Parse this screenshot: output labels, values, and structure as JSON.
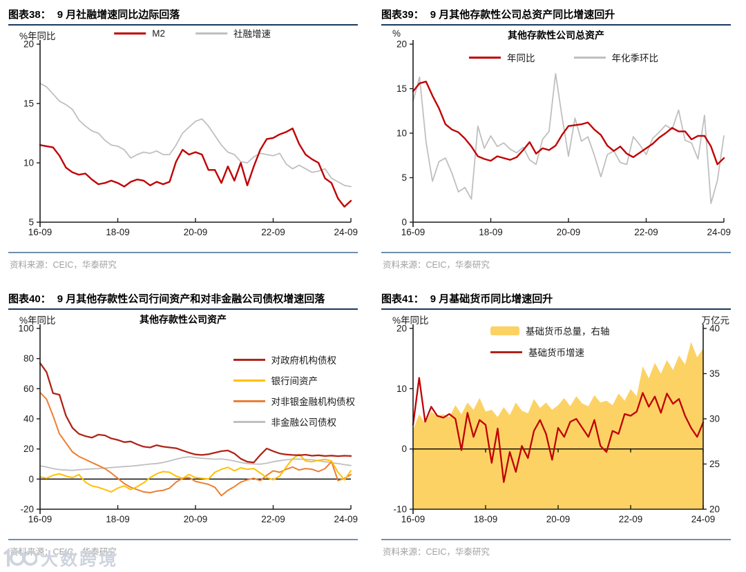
{
  "watermark": {
    "text": "大数跨境"
  },
  "panels": [
    {
      "caption_label": "图表38：",
      "caption_text": "9 月社融增速同比边际回落",
      "source": "资料来源：CEIC，华泰研究"
    },
    {
      "caption_label": "图表39：",
      "caption_text": "9 月其他存款性公司总资产同比增速回升",
      "source": "资料来源：CEIC，华泰研究"
    },
    {
      "caption_label": "图表40：",
      "caption_text": "9 月其他存款性公司行间资产和对非金融公司债权增速回落",
      "source": "资料来源：CEIC，华泰研究"
    },
    {
      "caption_label": "图表41：",
      "caption_text": "9 月基础货币同比增速回升",
      "source": "资料来源：CEIC，华泰研究"
    }
  ],
  "chart_data": [
    {
      "id": "fig38",
      "type": "line",
      "title": "图表38： 9 月社融增速同比边际回落",
      "ylabel": "%年同比",
      "ylim": [
        5,
        20
      ],
      "yticks": [
        5,
        10,
        15,
        20
      ],
      "x_tick_labels": [
        "16-09",
        "18-09",
        "20-09",
        "22-09",
        "24-09"
      ],
      "grid": false,
      "legend_position": "top-center",
      "legend": [
        {
          "label": "M2",
          "color": "#c00000",
          "swatch": "line"
        },
        {
          "label": "社融增速",
          "color": "#bfbfbf",
          "swatch": "line"
        }
      ],
      "series": [
        {
          "name": "社融增速",
          "color": "#bfbfbf",
          "width": 1.8,
          "values": [
            16.7,
            16.4,
            15.8,
            15.2,
            14.9,
            14.5,
            13.6,
            13.1,
            12.7,
            12.5,
            11.9,
            11.5,
            11.4,
            11.1,
            10.4,
            10.7,
            10.9,
            10.8,
            11.0,
            10.7,
            10.7,
            11.5,
            12.5,
            13.0,
            13.5,
            13.7,
            13.1,
            12.3,
            11.5,
            10.9,
            10.7,
            10.1,
            10.0,
            10.5,
            10.8,
            10.7,
            10.6,
            10.8,
            9.9,
            9.5,
            9.8,
            9.5,
            9.2,
            9.3,
            9.5,
            8.7,
            8.4,
            8.1,
            8.0
          ]
        },
        {
          "name": "M2",
          "color": "#c00000",
          "width": 2.4,
          "values": [
            11.5,
            11.4,
            11.3,
            10.6,
            9.6,
            9.2,
            9.0,
            9.1,
            8.6,
            8.2,
            8.3,
            8.5,
            8.3,
            8.0,
            8.4,
            8.6,
            8.5,
            8.1,
            8.4,
            8.2,
            8.4,
            10.1,
            11.1,
            10.7,
            10.9,
            10.7,
            9.4,
            9.4,
            8.3,
            9.7,
            8.5,
            10.0,
            8.1,
            9.7,
            11.1,
            12.0,
            12.1,
            12.4,
            12.6,
            12.9,
            11.6,
            10.7,
            10.3,
            10.0,
            8.7,
            8.3,
            7.0,
            6.3,
            6.8
          ]
        }
      ]
    },
    {
      "id": "fig39",
      "type": "line",
      "title": "图表39： 9 月其他存款性公司总资产同比增速回升",
      "subtitle": "其他存款性公司总资产",
      "ylabel": "%",
      "ylim": [
        0,
        20
      ],
      "yticks": [
        0,
        5,
        10,
        15,
        20
      ],
      "x_tick_labels": [
        "16-09",
        "18-09",
        "20-09",
        "22-09",
        "24-09"
      ],
      "grid": false,
      "legend_position": "top-center",
      "legend": [
        {
          "label": "年同比",
          "color": "#c00000",
          "swatch": "line"
        },
        {
          "label": "年化季环比",
          "color": "#bfbfbf",
          "swatch": "line"
        }
      ],
      "series": [
        {
          "name": "年化季环比",
          "color": "#bfbfbf",
          "width": 1.8,
          "values": [
            13.6,
            16.3,
            9.0,
            4.6,
            6.8,
            7.2,
            5.5,
            3.4,
            3.9,
            2.6,
            10.8,
            8.3,
            9.7,
            8.5,
            8.9,
            8.2,
            7.8,
            8.4,
            7.0,
            6.5,
            9.3,
            10.2,
            16.7,
            11.9,
            7.4,
            11.7,
            9.1,
            9.6,
            7.5,
            5.1,
            7.6,
            8.0,
            6.7,
            6.5,
            9.6,
            8.7,
            7.6,
            9.4,
            10.1,
            10.9,
            10.4,
            12.6,
            9.2,
            8.9,
            7.1,
            12.0,
            2.1,
            4.7,
            9.7
          ]
        },
        {
          "name": "年同比",
          "color": "#c00000",
          "width": 2.4,
          "values": [
            14.7,
            15.6,
            15.8,
            14.2,
            12.8,
            11.0,
            10.4,
            10.1,
            9.4,
            8.5,
            7.4,
            7.1,
            6.9,
            7.4,
            7.2,
            7.0,
            7.3,
            8.1,
            9.0,
            7.7,
            8.3,
            8.1,
            8.6,
            9.8,
            10.8,
            10.9,
            11.0,
            11.2,
            10.4,
            9.8,
            8.6,
            8.0,
            8.5,
            7.7,
            7.3,
            7.8,
            8.3,
            8.8,
            9.5,
            10.0,
            10.6,
            10.2,
            10.2,
            9.3,
            9.7,
            9.7,
            8.5,
            6.5,
            7.2
          ]
        }
      ]
    },
    {
      "id": "fig40",
      "type": "line",
      "title": "图表40： 9 月其他存款性公司行间资产和对非金融公司债权增速回落",
      "subtitle": "其他存款性公司资产",
      "ylabel": "%年同比",
      "ylim": [
        -20,
        100
      ],
      "yticks": [
        -20,
        0,
        20,
        40,
        60,
        80,
        100
      ],
      "zero_line": true,
      "x_tick_labels": [
        "16-09",
        "18-09",
        "20-09",
        "22-09",
        "24-09"
      ],
      "grid": false,
      "legend_position": "right",
      "legend": [
        {
          "label": "对政府机构债权",
          "color": "#b02418",
          "swatch": "line"
        },
        {
          "label": "银行间资产",
          "color": "#ffc000",
          "swatch": "line"
        },
        {
          "label": "对非银金融机构债权",
          "color": "#ed7d31",
          "swatch": "line"
        },
        {
          "label": "非金融公司债权",
          "color": "#bfbfbf",
          "swatch": "line"
        }
      ],
      "series": [
        {
          "name": "非金融公司债权",
          "color": "#bfbfbf",
          "width": 1.8,
          "values": [
            8.8,
            8.0,
            7.0,
            6.3,
            6.0,
            5.8,
            6.2,
            6.5,
            6.8,
            7.0,
            7.3,
            7.6,
            8.0,
            8.3,
            8.6,
            9.0,
            9.5,
            10.0,
            10.3,
            11.0,
            12.0,
            13.2,
            14.2,
            14.8,
            14.3,
            13.8,
            13.5,
            13.2,
            13.4,
            12.8,
            12.0,
            11.0,
            10.3,
            10.0,
            9.9,
            10.5,
            11.5,
            12.2,
            12.8,
            13.2,
            13.3,
            13.0,
            12.8,
            12.2,
            11.5,
            10.8,
            10.3,
            9.6,
            9.0
          ]
        },
        {
          "name": "对非银金融机构债权",
          "color": "#ed7d31",
          "width": 2.0,
          "values": [
            57.5,
            53.0,
            42.0,
            30.0,
            24.0,
            18.0,
            15.0,
            13.0,
            11.0,
            9.0,
            7.0,
            4.0,
            0.5,
            -3.0,
            -5.5,
            -7.0,
            -8.5,
            -9.0,
            -8.0,
            -7.5,
            -6.0,
            -2.0,
            0.5,
            1.0,
            -1.5,
            -2.5,
            -3.5,
            -5.5,
            -11.0,
            -7.5,
            -5.0,
            -2.0,
            -0.5,
            0.5,
            -1.0,
            2.5,
            5.5,
            4.5,
            6.5,
            8.0,
            6.0,
            7.0,
            6.5,
            5.0,
            7.0,
            11.5,
            -1.0,
            0.5,
            3.0
          ]
        },
        {
          "name": "银行间资产",
          "color": "#ffc000",
          "width": 2.0,
          "values": [
            1.5,
            0.5,
            2.5,
            3.5,
            2.0,
            1.0,
            3.0,
            -2.0,
            -4.5,
            -5.5,
            -7.0,
            -8.5,
            -6.0,
            -4.5,
            -7.0,
            -5.0,
            -2.5,
            1.0,
            3.5,
            5.0,
            4.5,
            2.0,
            0.5,
            3.0,
            1.0,
            0.5,
            0.0,
            4.5,
            6.5,
            7.8,
            5.5,
            7.5,
            6.5,
            7.0,
            4.0,
            1.0,
            -0.5,
            2.0,
            8.0,
            13.5,
            16.5,
            12.0,
            11.5,
            12.5,
            13.0,
            12.0,
            4.5,
            -0.5,
            5.5
          ]
        },
        {
          "name": "对政府机构债权",
          "color": "#b02418",
          "width": 2.3,
          "values": [
            77.0,
            71.0,
            57.0,
            56.0,
            42.0,
            34.0,
            30.0,
            28.5,
            27.5,
            29.5,
            29.0,
            27.0,
            26.0,
            24.5,
            25.0,
            23.0,
            21.5,
            21.0,
            22.5,
            21.5,
            21.0,
            20.5,
            19.0,
            17.5,
            16.3,
            16.0,
            16.5,
            17.5,
            18.5,
            19.0,
            17.0,
            13.5,
            11.5,
            11.0,
            16.0,
            20.3,
            18.5,
            17.0,
            16.3,
            16.0,
            15.8,
            16.2,
            15.5,
            15.8,
            15.3,
            15.6,
            15.2,
            15.5,
            15.3
          ]
        }
      ]
    },
    {
      "id": "fig41",
      "type": "area+line",
      "title": "图表41： 9 月基础货币同比增速回升",
      "ylabel": "%年同比",
      "ylim": [
        -10,
        20
      ],
      "yticks": [
        -10,
        0,
        10,
        20
      ],
      "zero_line": true,
      "zero_ticks": true,
      "y2": {
        "ylabel": "万亿元",
        "ylim": [
          20,
          40
        ],
        "yticks": [
          20,
          25,
          30,
          35,
          40
        ]
      },
      "x_tick_labels": [
        "16-09",
        "18-09",
        "20-09",
        "22-09",
        "24-09"
      ],
      "grid": false,
      "legend_position": "top-center",
      "legend": [
        {
          "label": "基础货币总量，右轴",
          "color": "#fcd265",
          "swatch": "area"
        },
        {
          "label": "基础货币增速",
          "color": "#b02418",
          "swatch": "line"
        }
      ],
      "series": [
        {
          "name": "基础货币总量（右轴，万亿元）",
          "type": "area",
          "axis": "right",
          "color": "#fcd265",
          "values": [
            28.8,
            30.5,
            29.5,
            30.8,
            30.3,
            30.5,
            30.2,
            31.5,
            30.5,
            31.8,
            31.0,
            32.3,
            30.8,
            31.0,
            30.2,
            31.3,
            30.4,
            31.8,
            30.9,
            30.6,
            32.2,
            31.2,
            31.8,
            31.0,
            31.5,
            32.3,
            31.4,
            32.5,
            31.7,
            31.4,
            32.6,
            31.8,
            32.0,
            31.5,
            32.8,
            32.0,
            33.3,
            32.5,
            35.8,
            34.5,
            36.2,
            35.0,
            36.5,
            35.4,
            37.0,
            36.0,
            38.5,
            36.8,
            37.8
          ]
        },
        {
          "name": "基础货币增速（%年同比）",
          "color": "#c00000",
          "width": 2.3,
          "values": [
            4.0,
            11.8,
            4.5,
            7.0,
            5.5,
            5.2,
            5.8,
            5.0,
            -0.2,
            6.0,
            2.0,
            4.8,
            4.0,
            -2.3,
            3.4,
            -5.5,
            -0.5,
            -3.8,
            0.5,
            -1.5,
            3.0,
            4.8,
            2.5,
            -1.8,
            3.5,
            2.0,
            4.5,
            5.0,
            3.5,
            2.0,
            4.8,
            0.5,
            -0.5,
            3.0,
            2.5,
            5.8,
            5.5,
            6.2,
            9.3,
            7.0,
            8.7,
            6.0,
            9.2,
            7.5,
            8.3,
            5.5,
            3.5,
            2.0,
            4.4
          ]
        }
      ]
    }
  ]
}
